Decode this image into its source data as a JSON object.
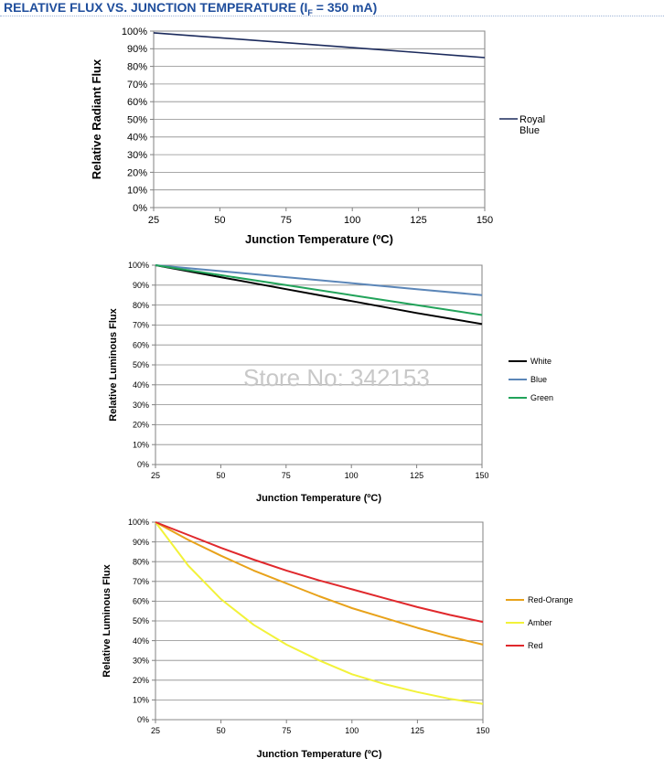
{
  "header": {
    "title_main": "RELATIVE FLUX VS. JUNCTION TEMPERATURE (I",
    "title_sub": "F",
    "title_tail": " = 350 mA)"
  },
  "watermark": "Store No: 342153",
  "chart_data": [
    {
      "type": "line",
      "xlabel": "Junction Temperature (ºC)",
      "ylabel": "Relative Radiant Flux",
      "xlim": [
        25,
        150
      ],
      "ylim": [
        0,
        100
      ],
      "xticks": [
        "25",
        "50",
        "75",
        "100",
        "125",
        "150"
      ],
      "yticks": [
        "0%",
        "10%",
        "20%",
        "30%",
        "40%",
        "50%",
        "60%",
        "70%",
        "80%",
        "90%",
        "100%"
      ],
      "grid": true,
      "legend_position": "right",
      "series": [
        {
          "name": "Royal Blue",
          "color": "#1b2a5c",
          "x": [
            25,
            50,
            75,
            100,
            125,
            150
          ],
          "y": [
            99,
            96.2,
            93.4,
            90.6,
            87.8,
            85
          ]
        }
      ]
    },
    {
      "type": "line",
      "xlabel": "Junction Temperature (ºC)",
      "ylabel": "Relative Luminous Flux",
      "xlim": [
        25,
        150
      ],
      "ylim": [
        0,
        100
      ],
      "xticks": [
        "25",
        "50",
        "75",
        "100",
        "125",
        "150"
      ],
      "yticks": [
        "0%",
        "10%",
        "20%",
        "30%",
        "40%",
        "50%",
        "60%",
        "70%",
        "80%",
        "90%",
        "100%"
      ],
      "grid": true,
      "legend_position": "right",
      "series": [
        {
          "name": "White",
          "color": "#000000",
          "x": [
            25,
            50,
            75,
            100,
            125,
            150
          ],
          "y": [
            100,
            94,
            88,
            82,
            76,
            70.5
          ]
        },
        {
          "name": "Blue",
          "color": "#5b86b8",
          "x": [
            25,
            50,
            75,
            100,
            125,
            150
          ],
          "y": [
            100,
            97,
            94,
            91,
            88,
            85
          ]
        },
        {
          "name": "Green",
          "color": "#22a35a",
          "x": [
            25,
            50,
            75,
            100,
            125,
            150
          ],
          "y": [
            100,
            95,
            90,
            85,
            80,
            75
          ]
        }
      ]
    },
    {
      "type": "line",
      "xlabel": "Junction Temperature (ºC)",
      "ylabel": "Relative Luminous Flux",
      "xlim": [
        25,
        150
      ],
      "ylim": [
        0,
        100
      ],
      "xticks": [
        "25",
        "50",
        "75",
        "100",
        "125",
        "150"
      ],
      "yticks": [
        "0%",
        "10%",
        "20%",
        "30%",
        "40%",
        "50%",
        "60%",
        "70%",
        "80%",
        "90%",
        "100%"
      ],
      "grid": true,
      "legend_position": "right",
      "series": [
        {
          "name": "Red-Orange",
          "color": "#e8a21a",
          "x": [
            25,
            37.5,
            50,
            62.5,
            75,
            87.5,
            100,
            112.5,
            125,
            137.5,
            150
          ],
          "y": [
            100,
            91,
            83,
            75.5,
            69,
            62.5,
            56.5,
            51.5,
            46.5,
            42,
            38
          ]
        },
        {
          "name": "Amber",
          "color": "#f2f23a",
          "x": [
            25,
            37.5,
            50,
            62.5,
            75,
            87.5,
            100,
            112.5,
            125,
            137.5,
            150
          ],
          "y": [
            100,
            78,
            61,
            48,
            38,
            30,
            23,
            18,
            14,
            10.5,
            8
          ]
        },
        {
          "name": "Red",
          "color": "#e0282c",
          "x": [
            25,
            37.5,
            50,
            62.5,
            75,
            87.5,
            100,
            112.5,
            125,
            137.5,
            150
          ],
          "y": [
            100,
            93.5,
            87,
            81,
            75.5,
            70.5,
            66,
            61.5,
            57,
            53,
            49.5
          ]
        }
      ]
    }
  ]
}
